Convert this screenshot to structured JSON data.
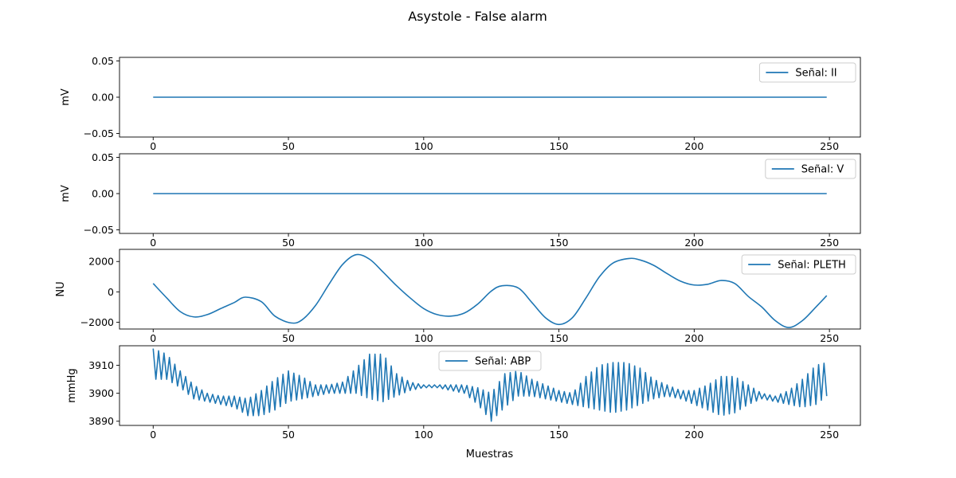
{
  "chart_data": {
    "type": "line",
    "title": "Asystole - False alarm",
    "xlabel": "Muestras",
    "series_color": "#1f77b4",
    "panels": [
      {
        "legend": "Señal: II",
        "legend_loc": "upper right",
        "ylabel": "mV",
        "ylim": [
          -0.055,
          0.055
        ],
        "xlim": [
          -12.45,
          261.45
        ],
        "xticks": [
          0,
          50,
          100,
          150,
          200,
          250
        ],
        "xtick_labels": [
          "0",
          "50",
          "100",
          "150",
          "200",
          "250"
        ],
        "yticks": [
          -0.05,
          0.0,
          0.05
        ],
        "ytick_labels": [
          "−0.05",
          "0.00",
          "0.05"
        ],
        "x": [
          0,
          249
        ],
        "y": [
          0.0,
          0.0
        ]
      },
      {
        "legend": "Señal: V",
        "legend_loc": "upper right",
        "ylabel": "mV",
        "ylim": [
          -0.055,
          0.055
        ],
        "xlim": [
          -12.45,
          261.45
        ],
        "xticks": [
          0,
          50,
          100,
          150,
          200,
          250
        ],
        "xtick_labels": [
          "0",
          "50",
          "100",
          "150",
          "200",
          "250"
        ],
        "yticks": [
          -0.05,
          0.0,
          0.05
        ],
        "ytick_labels": [
          "−0.05",
          "0.00",
          "0.05"
        ],
        "x": [
          0,
          249
        ],
        "y": [
          0.0,
          0.0
        ]
      },
      {
        "legend": "Señal: PLETH",
        "legend_loc": "upper right",
        "ylabel": "NU",
        "ylim": [
          -2450,
          2800
        ],
        "xlim": [
          -12.45,
          261.45
        ],
        "xticks": [
          0,
          50,
          100,
          150,
          200,
          250
        ],
        "xtick_labels": [
          "0",
          "50",
          "100",
          "150",
          "200",
          "250"
        ],
        "yticks": [
          -2000,
          0,
          2000
        ],
        "ytick_labels": [
          "−2000",
          "0",
          "2000"
        ],
        "x": [
          0,
          5,
          10,
          15,
          20,
          25,
          30,
          34,
          40,
          45,
          51,
          55,
          60,
          65,
          70,
          75,
          80,
          85,
          90,
          95,
          100,
          105,
          110,
          115,
          120,
          125,
          129,
          135,
          140,
          145,
          150,
          155,
          160,
          165,
          170,
          176,
          180,
          185,
          190,
          195,
          200,
          205,
          210,
          215,
          220,
          225,
          230,
          235,
          240,
          245,
          249
        ],
        "y": [
          550,
          -400,
          -1300,
          -1650,
          -1500,
          -1100,
          -700,
          -350,
          -650,
          -1600,
          -2050,
          -1850,
          -900,
          500,
          1800,
          2450,
          2150,
          1300,
          400,
          -400,
          -1100,
          -1500,
          -1600,
          -1400,
          -800,
          50,
          400,
          250,
          -700,
          -1700,
          -2150,
          -1700,
          -400,
          1000,
          1900,
          2200,
          2100,
          1750,
          1200,
          700,
          450,
          500,
          750,
          550,
          -300,
          -1000,
          -1900,
          -2350,
          -1900,
          -1000,
          -250
        ]
      },
      {
        "legend": "Señal: ABP",
        "legend_loc": "upper center",
        "ylabel": "mmHg",
        "ylim": [
          3888.5,
          3917
        ],
        "xlim": [
          -12.45,
          261.45
        ],
        "xticks": [
          0,
          50,
          100,
          150,
          200,
          250
        ],
        "xtick_labels": [
          "0",
          "50",
          "100",
          "150",
          "200",
          "250"
        ],
        "yticks": [
          3890,
          3900,
          3910
        ],
        "ytick_labels": [
          "3890",
          "3900",
          "3910"
        ],
        "samples": 250,
        "oscillation_period": 2,
        "envelope": {
          "x": [
            0,
            5,
            10,
            15,
            20,
            25,
            30,
            35,
            40,
            45,
            50,
            55,
            60,
            65,
            70,
            75,
            80,
            85,
            90,
            95,
            100,
            105,
            110,
            115,
            120,
            125,
            130,
            135,
            140,
            145,
            150,
            155,
            160,
            165,
            170,
            175,
            180,
            185,
            190,
            195,
            200,
            205,
            210,
            215,
            220,
            225,
            230,
            235,
            240,
            245,
            249
          ],
          "upper": [
            3916,
            3914,
            3908,
            3903,
            3900,
            3899,
            3899,
            3898,
            3901,
            3905,
            3908,
            3906,
            3903,
            3903,
            3904,
            3909,
            3914,
            3914,
            3907,
            3904,
            3903,
            3903,
            3903,
            3903,
            3902,
            3900,
            3907,
            3908,
            3905,
            3903,
            3901,
            3900,
            3906,
            3910,
            3911,
            3911,
            3909,
            3905,
            3903,
            3901,
            3901,
            3903,
            3906,
            3906,
            3903,
            3900,
            3899,
            3901,
            3905,
            3910,
            3911
          ],
          "lower": [
            3905,
            3905,
            3902,
            3898,
            3897,
            3896,
            3895,
            3892,
            3892,
            3894,
            3897,
            3898,
            3899,
            3900,
            3900,
            3900,
            3898,
            3897,
            3899,
            3901,
            3902,
            3902,
            3901,
            3900,
            3896,
            3890,
            3895,
            3899,
            3899,
            3898,
            3897,
            3896,
            3895,
            3894,
            3893,
            3894,
            3896,
            3898,
            3899,
            3898,
            3896,
            3894,
            3892,
            3893,
            3896,
            3898,
            3897,
            3896,
            3895,
            3896,
            3899
          ]
        }
      }
    ]
  }
}
